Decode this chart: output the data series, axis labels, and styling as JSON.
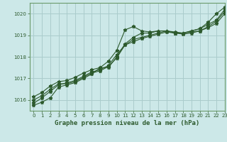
{
  "title": "Graphe pression niveau de la mer (hPa)",
  "background_color": "#cce8e8",
  "grid_color": "#aacccc",
  "line_color": "#2d5a2d",
  "spine_color": "#6b9b6b",
  "xlim": [
    -0.5,
    23
  ],
  "ylim": [
    1015.5,
    1020.5
  ],
  "yticks": [
    1016,
    1017,
    1018,
    1019,
    1020
  ],
  "xticks": [
    0,
    1,
    2,
    3,
    4,
    5,
    6,
    7,
    8,
    9,
    10,
    11,
    12,
    13,
    14,
    15,
    16,
    17,
    18,
    19,
    20,
    21,
    22,
    23
  ],
  "series": [
    [
      1015.75,
      1015.9,
      1016.1,
      1016.6,
      1016.7,
      1016.8,
      1017.0,
      1017.2,
      1017.5,
      1017.8,
      1018.3,
      1019.25,
      1019.4,
      1019.2,
      1019.15,
      1019.2,
      1019.2,
      1019.1,
      1019.1,
      1019.2,
      1019.3,
      1019.6,
      1020.0,
      1020.3
    ],
    [
      1016.0,
      1016.2,
      1016.5,
      1016.75,
      1016.75,
      1016.85,
      1017.05,
      1017.25,
      1017.35,
      1017.55,
      1017.95,
      1018.55,
      1018.8,
      1018.9,
      1019.0,
      1019.1,
      1019.2,
      1019.1,
      1019.1,
      1019.2,
      1019.3,
      1019.5,
      1019.7,
      1020.2
    ],
    [
      1016.15,
      1016.35,
      1016.65,
      1016.85,
      1016.9,
      1017.05,
      1017.25,
      1017.4,
      1017.5,
      1017.5,
      1018.0,
      1018.6,
      1018.9,
      1019.1,
      1019.1,
      1019.2,
      1019.2,
      1019.15,
      1019.1,
      1019.15,
      1019.2,
      1019.35,
      1019.55,
      1020.0
    ],
    [
      1015.85,
      1016.1,
      1016.4,
      1016.7,
      1016.8,
      1016.9,
      1017.1,
      1017.3,
      1017.4,
      1017.6,
      1018.1,
      1018.55,
      1018.7,
      1018.85,
      1018.95,
      1019.05,
      1019.15,
      1019.1,
      1019.05,
      1019.1,
      1019.2,
      1019.4,
      1019.65,
      1020.1
    ]
  ]
}
